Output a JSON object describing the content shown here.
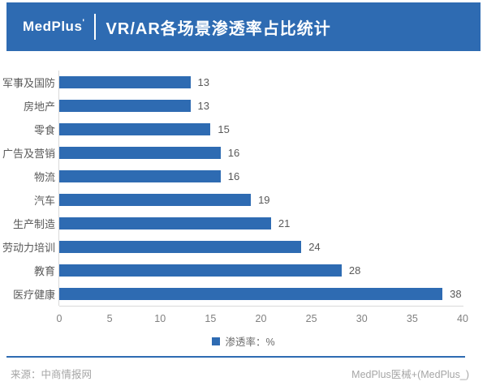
{
  "header": {
    "logo": "MedPlus",
    "logo_mark": "'",
    "title": "VR/AR各场景渗透率占比统计"
  },
  "chart_data": {
    "type": "bar",
    "orientation": "horizontal",
    "title": "VR/AR各场景渗透率占比统计",
    "categories": [
      "军事及国防",
      "房地产",
      "零食",
      "广告及营销",
      "物流",
      "汽车",
      "生产制造",
      "劳动力培训",
      "教育",
      "医疗健康"
    ],
    "values": [
      13,
      13,
      15,
      16,
      16,
      19,
      21,
      24,
      28,
      38
    ],
    "xlabel": "",
    "ylabel": "",
    "xlim": [
      0,
      40
    ],
    "xticks": [
      0,
      5,
      10,
      15,
      20,
      25,
      30,
      35,
      40
    ],
    "grid": false,
    "value_labels": true,
    "legend": {
      "label": "渗透率：%",
      "position": "bottom-center"
    },
    "bar_color": "#2E6BB2"
  },
  "footer": {
    "source": "来源：中商情报网",
    "credit": "MedPlus医械+(MedPlus_)"
  },
  "colors": {
    "accent_blue": "#2E6BB2",
    "label_gray": "#595959",
    "tick_gray": "#808080",
    "footer_gray": "#A6A6A6",
    "axis_line_gray": "#D9D9D9"
  }
}
